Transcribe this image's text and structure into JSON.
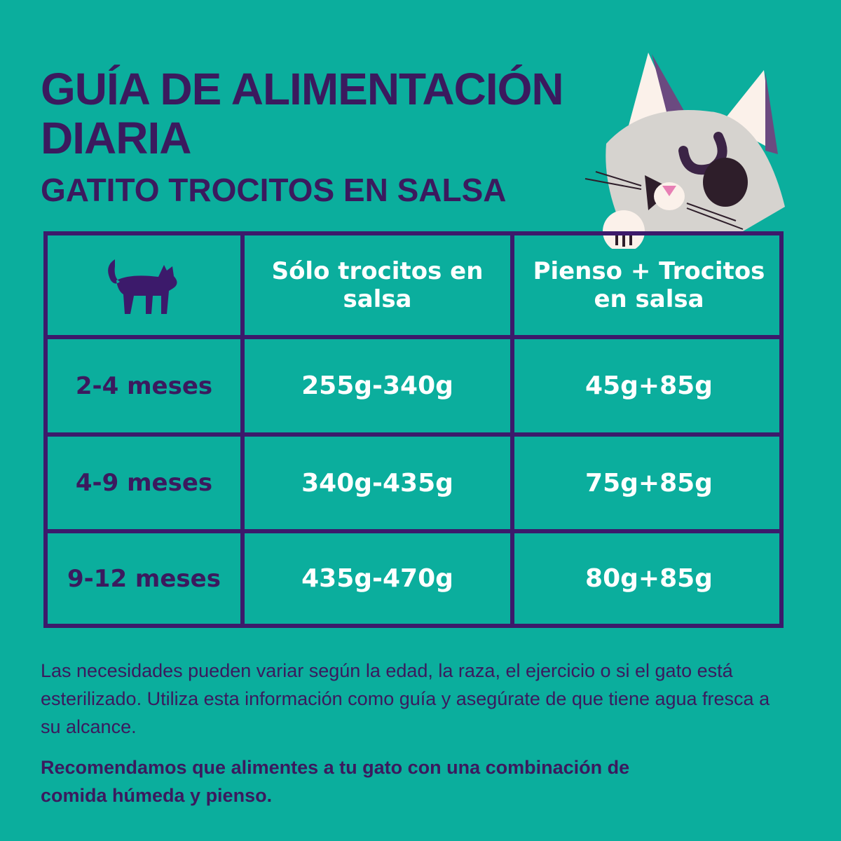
{
  "title": {
    "line1": "GUÍA DE ALIMENTACIÓN",
    "line2": "DIARIA",
    "subtitle": "GATITO TROCITOS EN SALSA"
  },
  "table": {
    "headers": [
      "Sólo trocitos en salsa",
      "Pienso + Trocitos en salsa"
    ],
    "header_icon": "cat-silhouette-icon",
    "rows": [
      {
        "age": "2-4 meses",
        "solo": "255g-340g",
        "mix": "45g+85g"
      },
      {
        "age": "4-9 meses",
        "solo": "340g-435g",
        "mix": "75g+85g"
      },
      {
        "age": "9-12 meses",
        "solo": "435g-470g",
        "mix": "80g+85g"
      }
    ]
  },
  "notes": {
    "p1": "Las necesidades pueden variar según la edad, la raza, el ejercicio o si el gato está esterilizado. Utiliza esta información como guía y asegúrate de que tiene agua fresca a su alcance.",
    "p2": "Recomendamos que alimentes a tu gato con una combinación de comida húmeda y pienso."
  },
  "colors": {
    "background": "#0bae9d",
    "purple": "#3b1a5e",
    "text_white": "#ffffff"
  }
}
